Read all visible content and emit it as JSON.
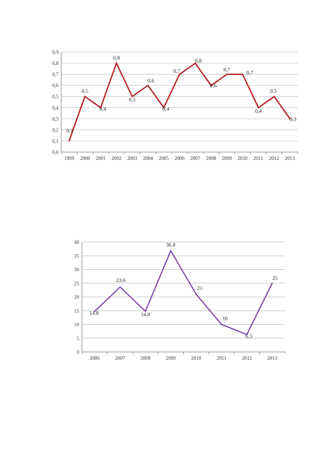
{
  "chart_data": [
    {
      "type": "line",
      "title": "",
      "xlabel": "",
      "ylabel": "",
      "x": [
        "1999",
        "2000",
        "2001",
        "2002",
        "2003",
        "2004",
        "2005",
        "2006",
        "2007",
        "2008",
        "2009",
        "2010",
        "2011",
        "2012",
        "2013"
      ],
      "series": [
        {
          "values": [
            0.1,
            0.5,
            0.4,
            0.8,
            0.5,
            0.6,
            0.4,
            0.7,
            0.8,
            0.6,
            0.7,
            0.7,
            0.4,
            0.5,
            0.3
          ],
          "color": "#b31b1b"
        }
      ],
      "ylim": [
        0,
        0.9
      ],
      "yticks": [
        "0,0",
        "0,1",
        "0,2",
        "0,3",
        "0,4",
        "0,5",
        "0,6",
        "0,7",
        "0,8",
        "0,9"
      ],
      "data_labels": [
        "0,1",
        "0,5",
        "0,4",
        "0,8",
        "0,5",
        "0,6",
        "0,4",
        "0,7",
        "0,8",
        "0,6",
        "0,7",
        "0,7",
        "0,4",
        "0,5",
        "0,3"
      ],
      "grid": true,
      "legend": "none"
    },
    {
      "type": "line",
      "title": "",
      "xlabel": "",
      "ylabel": "",
      "x": [
        "2006",
        "2007",
        "2008",
        "2009",
        "2010",
        "2011",
        "2012",
        "2013"
      ],
      "series": [
        {
          "values": [
            14.8,
            23.6,
            14.8,
            36.8,
            21,
            10,
            6.3,
            25
          ],
          "color": "#7030a0"
        }
      ],
      "ylim": [
        0,
        40
      ],
      "yticks": [
        "0",
        "5",
        "10",
        "15",
        "20",
        "25",
        "30",
        "35",
        "40"
      ],
      "data_labels": [
        "14.8",
        "23.6",
        "14.8",
        "36.8",
        "21",
        "10",
        "6.3",
        "25"
      ],
      "grid": true,
      "legend": "none"
    }
  ]
}
